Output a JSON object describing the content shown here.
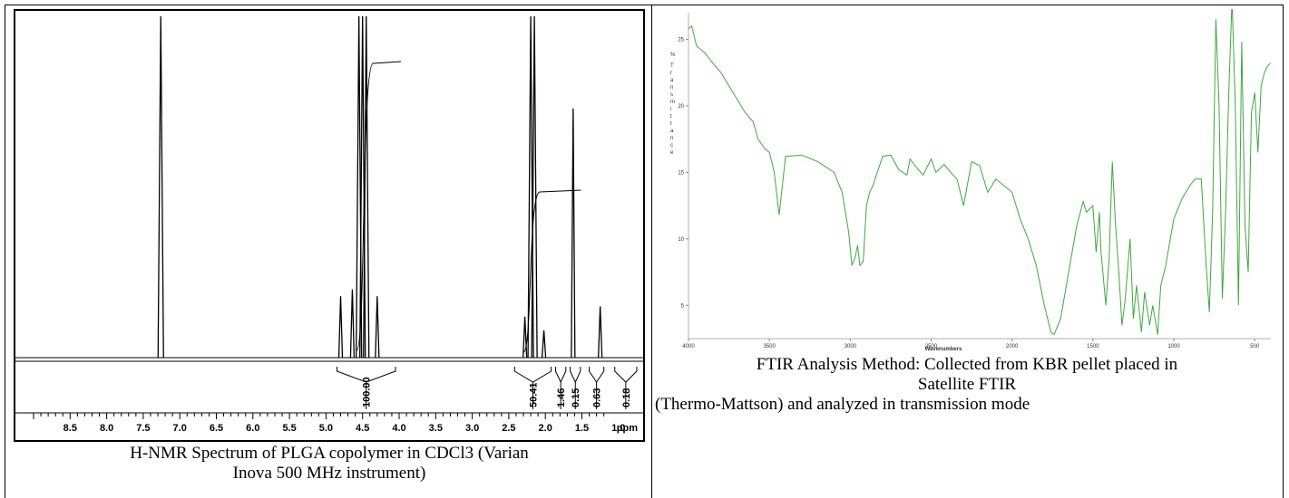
{
  "nmr": {
    "caption_line1": "H-NMR Spectrum of PLGA copolymer in CDCl3 (Varian",
    "caption_line2": "Inova 500 MHz instrument)"
  },
  "ftir": {
    "caption_line1": "FTIR Analysis Method: Collected from KBR pellet placed in",
    "caption_line2": "Satellite FTIR",
    "caption_line3": "(Thermo-Mattson) and analyzed in transmission mode"
  },
  "chart_data": [
    {
      "type": "line",
      "title": "",
      "xlabel": "ppm",
      "ylabel": "",
      "x_reversed": true,
      "xlim": [
        9.0,
        0.3
      ],
      "x_ticks": [
        "8.5",
        "8.0",
        "7.5",
        "7.0",
        "6.5",
        "6.0",
        "5.5",
        "5.0",
        "4.5",
        "4.0",
        "3.5",
        "3.0",
        "2.5",
        "2.0",
        "1.5",
        "1.0"
      ],
      "peaks": [
        {
          "ppm": 7.26,
          "height": 1.0
        },
        {
          "ppm": 4.8,
          "height": 0.18
        },
        {
          "ppm": 4.64,
          "height": 0.2
        },
        {
          "ppm": 4.55,
          "height": 1.0
        },
        {
          "ppm": 4.5,
          "height": 1.0
        },
        {
          "ppm": 4.45,
          "height": 1.0
        },
        {
          "ppm": 4.3,
          "height": 0.18
        },
        {
          "ppm": 2.28,
          "height": 0.12
        },
        {
          "ppm": 2.2,
          "height": 1.0
        },
        {
          "ppm": 2.15,
          "height": 1.0
        },
        {
          "ppm": 2.02,
          "height": 0.08
        },
        {
          "ppm": 1.62,
          "height": 0.73
        },
        {
          "ppm": 1.25,
          "height": 0.15
        }
      ],
      "integrals": [
        {
          "label": "100.00",
          "ppm": 4.45
        },
        {
          "label": "50.41",
          "ppm": 2.2
        },
        {
          "label": "1.46",
          "ppm": 1.8
        },
        {
          "label": "0.15",
          "ppm": 1.6
        },
        {
          "label": "0.63",
          "ppm": 1.3
        },
        {
          "label": "0.18",
          "ppm": 0.9
        }
      ],
      "grid": false
    },
    {
      "type": "line",
      "title": "",
      "xlabel": "Wavenumbers",
      "ylabel": "% Transmittance",
      "x_reversed": true,
      "xlim": [
        4000,
        400
      ],
      "ylim": [
        2.5,
        27
      ],
      "x_ticks": [
        "4000",
        "3500",
        "3000",
        "2500",
        "2000",
        "1500",
        "1000",
        "500"
      ],
      "y_ticks": [
        "5",
        "10",
        "15",
        "20",
        "25"
      ],
      "line_color": "#3fa83f",
      "x": [
        4000,
        3980,
        3950,
        3900,
        3850,
        3800,
        3750,
        3700,
        3650,
        3600,
        3570,
        3530,
        3500,
        3470,
        3440,
        3400,
        3300,
        3200,
        3100,
        3050,
        3010,
        2990,
        2970,
        2955,
        2940,
        2920,
        2900,
        2880,
        2860,
        2800,
        2750,
        2700,
        2650,
        2630,
        2600,
        2550,
        2500,
        2470,
        2420,
        2380,
        2340,
        2300,
        2250,
        2200,
        2150,
        2100,
        2050,
        2000,
        1950,
        1900,
        1850,
        1800,
        1760,
        1740,
        1700,
        1650,
        1600,
        1560,
        1540,
        1500,
        1480,
        1460,
        1450,
        1420,
        1400,
        1380,
        1360,
        1340,
        1320,
        1300,
        1270,
        1250,
        1230,
        1200,
        1180,
        1150,
        1130,
        1100,
        1080,
        1050,
        1000,
        950,
        900,
        870,
        850,
        830,
        800,
        780,
        760,
        740,
        720,
        700,
        680,
        660,
        640,
        620,
        600,
        580,
        560,
        540,
        520,
        500,
        480,
        460,
        440,
        420,
        400
      ],
      "y": [
        25.8,
        26.0,
        24.5,
        24.0,
        23.2,
        22.5,
        21.5,
        20.5,
        19.5,
        18.8,
        17.5,
        16.8,
        16.5,
        15.0,
        11.8,
        16.2,
        16.3,
        15.8,
        15.0,
        13.5,
        10.5,
        8.0,
        8.6,
        9.5,
        8.0,
        8.3,
        12.5,
        13.5,
        14.0,
        16.2,
        16.3,
        15.2,
        14.8,
        16.0,
        15.5,
        14.8,
        16.0,
        15.0,
        15.6,
        15.0,
        14.5,
        12.5,
        15.8,
        15.5,
        13.5,
        14.5,
        14.0,
        13.5,
        11.5,
        10.0,
        8.0,
        5.0,
        3.0,
        2.8,
        4.0,
        7.5,
        11.0,
        12.8,
        12.0,
        12.5,
        9.0,
        12.0,
        9.0,
        5.0,
        8.5,
        15.8,
        11.0,
        7.5,
        3.5,
        5.5,
        10.0,
        4.0,
        6.5,
        3.0,
        6.0,
        3.5,
        5.0,
        2.8,
        6.5,
        8.0,
        11.5,
        13.0,
        14.0,
        14.5,
        14.5,
        14.5,
        8.0,
        4.5,
        12.0,
        26.5,
        20.0,
        5.5,
        12.0,
        21.0,
        28.0,
        20.0,
        5.0,
        24.8,
        11.0,
        7.5,
        19.5,
        21.0,
        16.5,
        21.5,
        22.5,
        23.0,
        23.2
      ],
      "grid": false
    }
  ]
}
